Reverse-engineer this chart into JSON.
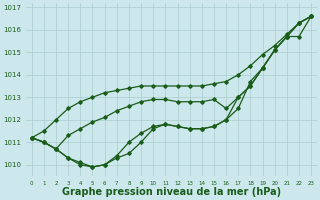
{
  "background_color": "#cce8ec",
  "plot_bg_color": "#cce8ec",
  "grid_color": "#aacccc",
  "line_color": "#1a5c1a",
  "xlabel": "Graphe pression niveau de la mer (hPa)",
  "xlabel_fontsize": 7,
  "ylim": [
    1009.5,
    1017.2
  ],
  "xlim": [
    -0.5,
    23.5
  ],
  "yticks": [
    1010,
    1011,
    1012,
    1013,
    1014,
    1015,
    1016,
    1017
  ],
  "xticks": [
    0,
    1,
    2,
    3,
    4,
    5,
    6,
    7,
    8,
    9,
    10,
    11,
    12,
    13,
    14,
    15,
    16,
    17,
    18,
    19,
    20,
    21,
    22,
    23
  ],
  "series": [
    [
      1011.2,
      1011.0,
      1010.7,
      1010.3,
      1010.0,
      1009.9,
      1010.0,
      1010.3,
      1010.5,
      1011.0,
      1011.6,
      1011.8,
      1011.7,
      1011.6,
      1011.6,
      1011.7,
      1012.0,
      1012.5,
      1013.7,
      1014.3,
      1015.1,
      1015.7,
      1016.3,
      1016.6
    ],
    [
      1011.2,
      1011.0,
      1010.7,
      1010.3,
      1010.1,
      1009.9,
      1010.0,
      1010.4,
      1011.0,
      1011.4,
      1011.7,
      1011.8,
      1011.7,
      1011.6,
      1011.6,
      1011.7,
      1012.0,
      1013.0,
      1013.5,
      1014.3,
      1015.1,
      1015.7,
      1015.7,
      1016.6
    ],
    [
      1011.2,
      1011.0,
      1010.7,
      1011.3,
      1011.6,
      1011.9,
      1012.1,
      1012.4,
      1012.6,
      1012.8,
      1012.9,
      1012.9,
      1012.8,
      1012.8,
      1012.8,
      1012.9,
      1012.5,
      1013.0,
      1013.5,
      1014.3,
      1015.1,
      1015.7,
      1016.3,
      1016.6
    ],
    [
      1011.2,
      1011.5,
      1012.0,
      1012.5,
      1012.8,
      1013.0,
      1013.2,
      1013.3,
      1013.4,
      1013.5,
      1013.5,
      1013.5,
      1013.5,
      1013.5,
      1013.5,
      1013.6,
      1013.7,
      1014.0,
      1014.4,
      1014.9,
      1015.3,
      1015.8,
      1016.3,
      1016.6
    ]
  ],
  "marker": "D",
  "marker_size": 1.8,
  "line_width": 0.9
}
